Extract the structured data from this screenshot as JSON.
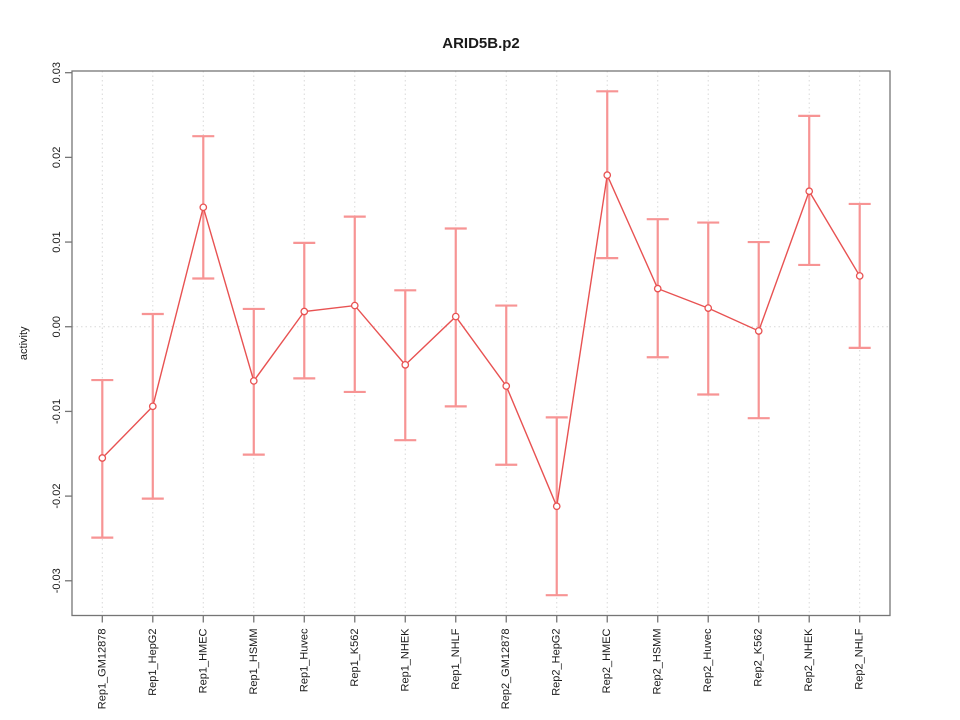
{
  "figure": {
    "title": "ARID5B.p2",
    "ylabel": "activity"
  },
  "chart_data": {
    "type": "scatter",
    "title": "ARID5B.p2",
    "xlabel": "",
    "ylabel": "activity",
    "categories": [
      "Rep1_GM12878",
      "Rep1_HepG2",
      "Rep1_HMEC",
      "Rep1_HSMM",
      "Rep1_Huvec",
      "Rep1_K562",
      "Rep1_NHEK",
      "Rep1_NHLF",
      "Rep2_GM12878",
      "Rep2_HepG2",
      "Rep2_HMEC",
      "Rep2_HSMM",
      "Rep2_Huvec",
      "Rep2_K562",
      "Rep2_NHEK",
      "Rep2_NHLF"
    ],
    "series": [
      {
        "name": "activity",
        "values": [
          -0.0155,
          -0.0094,
          0.0141,
          -0.0064,
          0.0018,
          0.0025,
          -0.0045,
          0.0012,
          -0.007,
          -0.0212,
          0.0179,
          0.0045,
          0.0022,
          -0.0005,
          0.016,
          0.006
        ],
        "error_low": [
          -0.0249,
          -0.0203,
          0.0057,
          -0.0151,
          -0.0061,
          -0.0077,
          -0.0134,
          -0.0094,
          -0.0163,
          -0.0317,
          0.0081,
          -0.0036,
          -0.008,
          -0.0108,
          0.0073,
          -0.0025
        ],
        "error_high": [
          -0.0063,
          0.0015,
          0.0225,
          0.0021,
          0.0099,
          0.013,
          0.0043,
          0.0116,
          0.0025,
          -0.0107,
          0.0278,
          0.0127,
          0.0123,
          0.01,
          0.0249,
          0.0145
        ]
      }
    ],
    "yticks": [
      -0.03,
      -0.02,
      -0.01,
      0,
      0.01,
      0.02,
      0.03
    ],
    "ytick_labels": [
      "-0.03",
      "-0.02",
      "-0.01",
      "0.00",
      "0.01",
      "0.02",
      "0.03"
    ],
    "ylim": [
      -0.0341,
      0.0302
    ],
    "xlim": [
      0.4,
      16.6
    ],
    "grid": "dotted vertical line at each category, dotted horizontal line at zero",
    "legend": "none",
    "marker": "open-circle",
    "colors": {
      "line": "#e85252",
      "point_stroke": "#e85252",
      "error_bar": "#f79494",
      "grid": "#d9d9d9",
      "box": "#757575",
      "text": "#1a1a1a"
    }
  }
}
